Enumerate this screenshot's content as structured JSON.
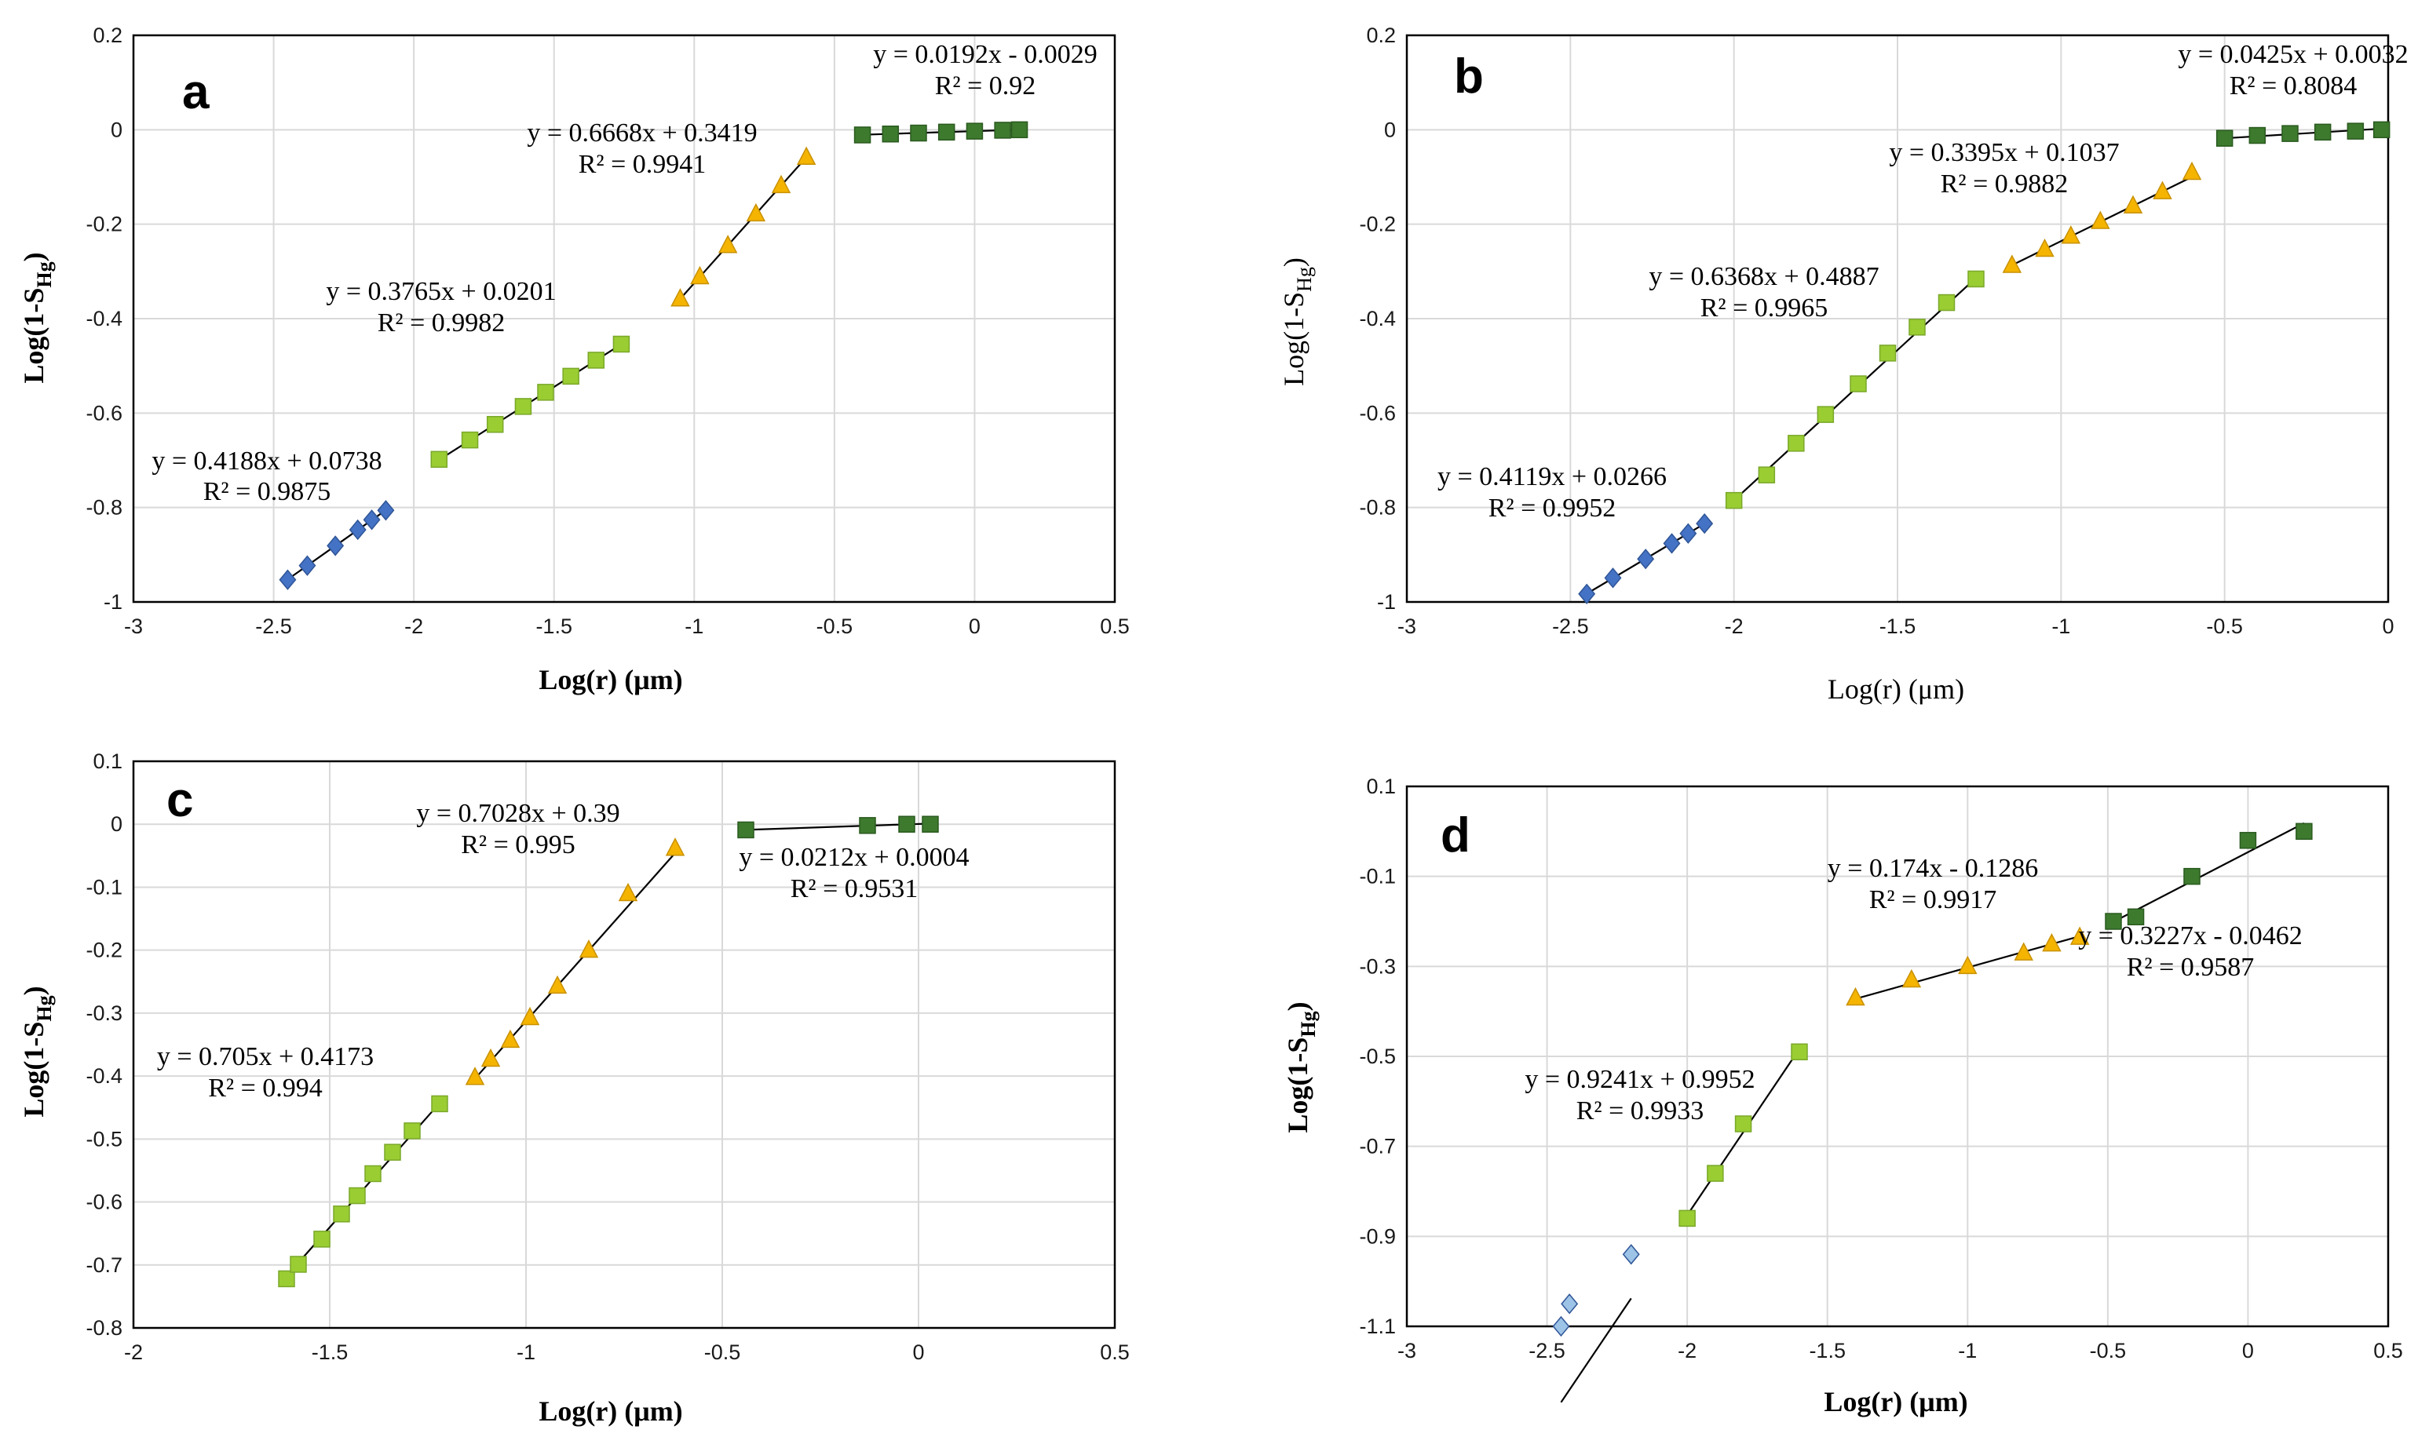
{
  "chart_data": [
    {
      "type": "scatter",
      "panel": "a",
      "xlabel": "Log(r) (μm)",
      "ylabel": "Log(1-S_Hg)",
      "xlim": [
        -3,
        0.5
      ],
      "ylim": [
        -1,
        0.2
      ],
      "xticks": [
        -3,
        -2.5,
        -2,
        -1.5,
        -1,
        -0.5,
        0,
        0.5
      ],
      "yticks": [
        -1,
        -0.8,
        -0.6,
        -0.4,
        -0.2,
        0,
        0.2
      ],
      "xtick_labels": [
        "-3",
        "-2.5",
        "-2",
        "-1.5",
        "-1",
        "-0.5",
        "0",
        "0.5"
      ],
      "ytick_labels": [
        "-1",
        "-0.8",
        "-0.6",
        "-0.4",
        "-0.2",
        "0",
        "0.2"
      ],
      "grid": true,
      "series": [
        {
          "name": "segment-1",
          "marker": "diamond",
          "color": "#4472c4",
          "x": [
            -2.45,
            -2.38,
            -2.28,
            -2.2,
            -2.15,
            -2.1
          ],
          "y": [
            -0.953,
            -0.923,
            -0.881,
            -0.847,
            -0.826,
            -0.806
          ],
          "fit": {
            "slope": 0.4188,
            "intercept": 0.0738,
            "x": [
              -2.45,
              -2.1
            ]
          },
          "equation": "y = 0.4188x + 0.0738",
          "r2": "R² = 0.9875"
        },
        {
          "name": "segment-2",
          "marker": "square",
          "color": "#9acd32",
          "x": [
            -1.91,
            -1.8,
            -1.71,
            -1.61,
            -1.53,
            -1.44,
            -1.35,
            -1.26
          ],
          "y": [
            -0.698,
            -0.657,
            -0.624,
            -0.586,
            -0.556,
            -0.522,
            -0.488,
            -0.454
          ],
          "fit": {
            "slope": 0.3765,
            "intercept": 0.0201,
            "x": [
              -1.91,
              -1.26
            ]
          },
          "equation": "y = 0.3765x + 0.0201",
          "r2": "R² = 0.9982"
        },
        {
          "name": "segment-3",
          "marker": "triangle",
          "color": "#f4b400",
          "x": [
            -1.05,
            -0.98,
            -0.88,
            -0.78,
            -0.69,
            -0.6
          ],
          "y": [
            -0.358,
            -0.311,
            -0.245,
            -0.178,
            -0.118,
            -0.058
          ],
          "fit": {
            "slope": 0.6668,
            "intercept": 0.3419,
            "x": [
              -1.05,
              -0.6
            ]
          },
          "equation": "y = 0.6668x + 0.3419",
          "r2": "R² = 0.9941"
        },
        {
          "name": "segment-4",
          "marker": "square",
          "color": "#3d7a2e",
          "x": [
            -0.4,
            -0.3,
            -0.2,
            -0.1,
            0,
            0.1,
            0.16
          ],
          "y": [
            -0.011,
            -0.009,
            -0.007,
            -0.005,
            -0.003,
            -0.001,
            0
          ],
          "fit": {
            "slope": 0.0192,
            "intercept": -0.0029,
            "x": [
              -0.4,
              0.16
            ]
          },
          "equation": "y = 0.0192x - 0.0029",
          "r2": "R² = 0.92"
        }
      ]
    },
    {
      "type": "scatter",
      "panel": "b",
      "xlabel": "Log(r) (μm)",
      "ylabel": "Log(1-S_Hg)",
      "xlim": [
        -3,
        0
      ],
      "ylim": [
        -1,
        0.2
      ],
      "xticks": [
        -3,
        -2.5,
        -2,
        -1.5,
        -1,
        -0.5,
        0
      ],
      "yticks": [
        -1,
        -0.8,
        -0.6,
        -0.4,
        -0.2,
        0,
        0.2
      ],
      "xtick_labels": [
        "-3",
        "-2.5",
        "-2",
        "-1.5",
        "-1",
        "-0.5",
        "0"
      ],
      "ytick_labels": [
        "-1",
        "-0.8",
        "-0.6",
        "-0.4",
        "-0.2",
        "0",
        "0.2"
      ],
      "grid": true,
      "series": [
        {
          "name": "segment-1",
          "marker": "diamond",
          "color": "#4472c4",
          "x": [
            -2.45,
            -2.37,
            -2.27,
            -2.19,
            -2.14,
            -2.09
          ],
          "y": [
            -0.983,
            -0.949,
            -0.909,
            -0.876,
            -0.855,
            -0.834
          ],
          "fit": {
            "slope": 0.4119,
            "intercept": 0.0266,
            "x": [
              -2.45,
              -2.09
            ]
          },
          "equation": "y = 0.4119x + 0.0266",
          "r2": "R² = 0.9952"
        },
        {
          "name": "segment-2",
          "marker": "square",
          "color": "#9acd32",
          "x": [
            -2.0,
            -1.9,
            -1.81,
            -1.72,
            -1.62,
            -1.53,
            -1.44,
            -1.35,
            -1.26
          ],
          "y": [
            -0.785,
            -0.731,
            -0.664,
            -0.603,
            -0.538,
            -0.473,
            -0.418,
            -0.366,
            -0.316
          ],
          "fit": {
            "slope": 0.6368,
            "intercept": 0.4887,
            "x": [
              -2.0,
              -1.26
            ]
          },
          "equation": "y = 0.6368x + 0.4887",
          "r2": "R² = 0.9965"
        },
        {
          "name": "segment-3",
          "marker": "triangle",
          "color": "#f4b400",
          "x": [
            -1.15,
            -1.05,
            -0.97,
            -0.88,
            -0.78,
            -0.69,
            -0.6
          ],
          "y": [
            -0.287,
            -0.253,
            -0.225,
            -0.194,
            -0.161,
            -0.131,
            -0.09
          ],
          "fit": {
            "slope": 0.3395,
            "intercept": 0.1037,
            "x": [
              -1.15,
              -0.6
            ]
          },
          "equation": "y = 0.3395x + 0.1037",
          "r2": "R² = 0.9882"
        },
        {
          "name": "segment-4",
          "marker": "square",
          "color": "#3d7a2e",
          "x": [
            -0.5,
            -0.4,
            -0.3,
            -0.2,
            -0.1,
            -0.02
          ],
          "y": [
            -0.018,
            -0.012,
            -0.008,
            -0.005,
            -0.003,
            0
          ],
          "fit": {
            "slope": 0.0425,
            "intercept": 0.0032,
            "x": [
              -0.5,
              -0.02
            ]
          },
          "equation": "y = 0.0425x + 0.0032",
          "r2": "R² = 0.8084"
        }
      ]
    },
    {
      "type": "scatter",
      "panel": "c",
      "xlabel": "Log(r) (μm)",
      "ylabel": "Log(1-S_Hg)",
      "xlim": [
        -2,
        0.5
      ],
      "ylim": [
        -0.8,
        0.1
      ],
      "xticks": [
        -2,
        -1.5,
        -1,
        -0.5,
        0,
        0.5
      ],
      "yticks": [
        -0.8,
        -0.7,
        -0.6,
        -0.5,
        -0.4,
        -0.3,
        -0.2,
        -0.1,
        0,
        0.1
      ],
      "xtick_labels": [
        "-2",
        "-1.5",
        "-1",
        "-0.5",
        "0",
        "0.5"
      ],
      "ytick_labels": [
        "-0.8",
        "-0.7",
        "-0.6",
        "-0.5",
        "-0.4",
        "-0.3",
        "-0.2",
        "-0.1",
        "0",
        "0.1"
      ],
      "grid": true,
      "series": [
        {
          "name": "segment-1",
          "marker": "square",
          "color": "#9acd32",
          "x": [
            -1.61,
            -1.58,
            -1.52,
            -1.47,
            -1.43,
            -1.39,
            -1.34,
            -1.29,
            -1.22
          ],
          "y": [
            -0.722,
            -0.699,
            -0.659,
            -0.619,
            -0.59,
            -0.555,
            -0.521,
            -0.487,
            -0.444
          ],
          "fit": {
            "slope": 0.705,
            "intercept": 0.4173,
            "x": [
              -1.61,
              -1.22
            ]
          },
          "equation": "y = 0.705x + 0.4173",
          "r2": "R² = 0.994"
        },
        {
          "name": "segment-2",
          "marker": "triangle",
          "color": "#f4b400",
          "x": [
            -1.13,
            -1.09,
            -1.04,
            -0.99,
            -0.92,
            -0.84,
            -0.74,
            -0.62
          ],
          "y": [
            -0.402,
            -0.373,
            -0.343,
            -0.307,
            -0.257,
            -0.2,
            -0.11,
            -0.038
          ],
          "fit": {
            "slope": 0.7028,
            "intercept": 0.39,
            "x": [
              -1.13,
              -0.62
            ]
          },
          "equation": "y = 0.7028x + 0.39",
          "r2": "R² = 0.995"
        },
        {
          "name": "segment-3",
          "marker": "square",
          "color": "#3d7a2e",
          "x": [
            -0.44,
            -0.13,
            -0.03,
            0.03
          ],
          "y": [
            -0.009,
            -0.002,
            0,
            0
          ],
          "fit": {
            "slope": 0.0212,
            "intercept": 0.0004,
            "x": [
              -0.44,
              0.03
            ]
          },
          "equation": "y = 0.0212x + 0.0004",
          "r2": "R² = 0.9531"
        }
      ]
    },
    {
      "type": "scatter",
      "panel": "d",
      "xlabel": "Log(r) (μm)",
      "ylabel": "Log(1-S_Hg)",
      "xlim": [
        -3,
        0.5
      ],
      "ylim": [
        -1.1,
        0.1
      ],
      "xticks": [
        -3,
        -2.5,
        -2,
        -1.5,
        -1,
        -0.5,
        0,
        0.5
      ],
      "yticks": [
        -1.1,
        -0.9,
        -0.7,
        -0.5,
        -0.3,
        -0.1,
        0.1
      ],
      "xtick_labels": [
        "-3",
        "-2.5",
        "-2",
        "-1.5",
        "-1",
        "-0.5",
        "0",
        "0.5"
      ],
      "ytick_labels": [
        "-1.1",
        "-0.9",
        "-0.7",
        "-0.5",
        "-0.3",
        "-0.1",
        "0.1"
      ],
      "grid": true,
      "series": [
        {
          "name": "segment-1",
          "marker": "diamond",
          "color": "#9dc3e6",
          "x": [
            -2.45,
            -2.42,
            -2.2
          ],
          "y": [
            -1.1,
            -1.05,
            -0.94
          ],
          "fit": {
            "slope": 0.9241,
            "intercept": 0.9952,
            "x": [
              -2.45,
              -2.2
            ]
          },
          "equation": "",
          "r2": ""
        },
        {
          "name": "segment-2",
          "marker": "square",
          "color": "#9acd32",
          "x": [
            -2.0,
            -1.9,
            -1.8,
            -1.6
          ],
          "y": [
            -0.86,
            -0.76,
            -0.65,
            -0.49
          ],
          "fit": {
            "slope": 0.9241,
            "intercept": 0.9952,
            "x": [
              -2.0,
              -1.6
            ]
          },
          "equation": "y = 0.9241x + 0.9952",
          "r2": "R² = 0.9933"
        },
        {
          "name": "segment-3",
          "marker": "triangle",
          "color": "#f4b400",
          "x": [
            -1.4,
            -1.2,
            -1.0,
            -0.8,
            -0.7,
            -0.6
          ],
          "y": [
            -0.37,
            -0.33,
            -0.3,
            -0.27,
            -0.25,
            -0.235
          ],
          "fit": {
            "slope": 0.174,
            "intercept": -0.1286,
            "x": [
              -1.4,
              -0.6
            ]
          },
          "equation": "y = 0.174x - 0.1286",
          "r2": "R² = 0.9917"
        },
        {
          "name": "segment-4",
          "marker": "square",
          "color": "#3d7a2e",
          "x": [
            -0.48,
            -0.4,
            -0.2,
            0.0,
            0.2
          ],
          "y": [
            -0.2,
            -0.19,
            -0.1,
            -0.02,
            0.0
          ],
          "fit": {
            "slope": 0.3227,
            "intercept": -0.0462,
            "x": [
              -0.48,
              0.2
            ]
          },
          "equation": "y = 0.3227x - 0.0462",
          "r2": "R² = 0.9587"
        }
      ]
    }
  ],
  "panels": {
    "a": {
      "letter": "a"
    },
    "b": {
      "letter": "b"
    },
    "c": {
      "letter": "c"
    },
    "d": {
      "letter": "d"
    }
  },
  "axis_text": {
    "xlabel": "Log(r) (μm)",
    "ylabel_main": "Log(1-S",
    "ylabel_sub": "Hg",
    "ylabel_end": ")"
  }
}
